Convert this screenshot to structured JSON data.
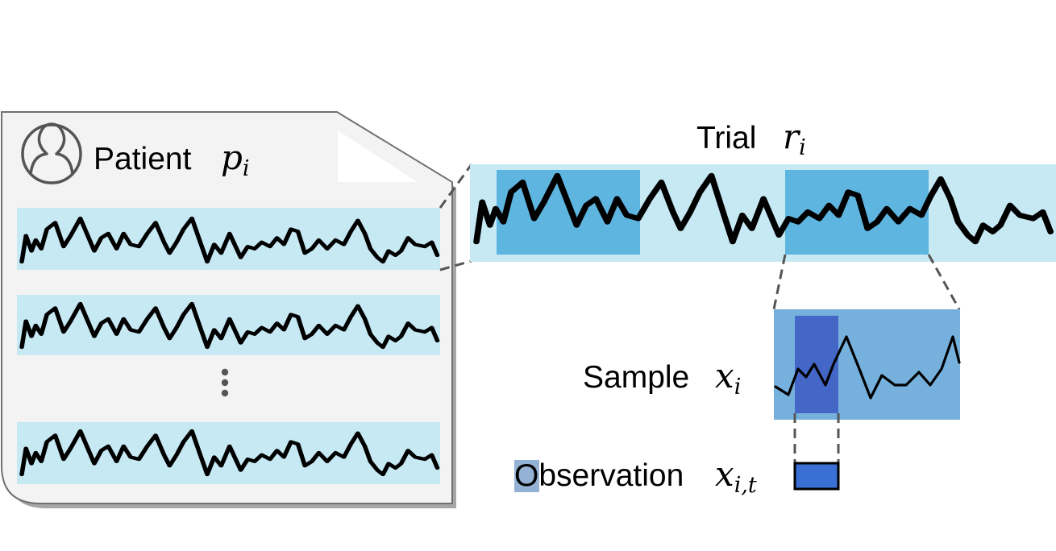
{
  "patient": {
    "label": "Patient",
    "symbol": "p",
    "subscript": "i"
  },
  "trial": {
    "label": "Trial",
    "symbol": "r",
    "subscript": "i"
  },
  "sample": {
    "label": "Sample",
    "symbol": "x",
    "subscript": "i"
  },
  "observation": {
    "label": "Observation",
    "symbol": "x",
    "subscript": "i,t"
  },
  "colors": {
    "document_fill": "#f3f3f3",
    "document_border": "#707070",
    "trial_band": "#c6e9f4",
    "sample_window": "#5eb5e0",
    "sample_box": "#76b1de",
    "observation": "#3a6fd4",
    "observation_in_sample": "#4466c6",
    "observation_legend_patch": "#93b2d4",
    "signal": "#000000",
    "connector": "#555555"
  },
  "icons": [
    "user-avatar-icon",
    "vertical-ellipsis-icon",
    "folded-corner-icon"
  ]
}
